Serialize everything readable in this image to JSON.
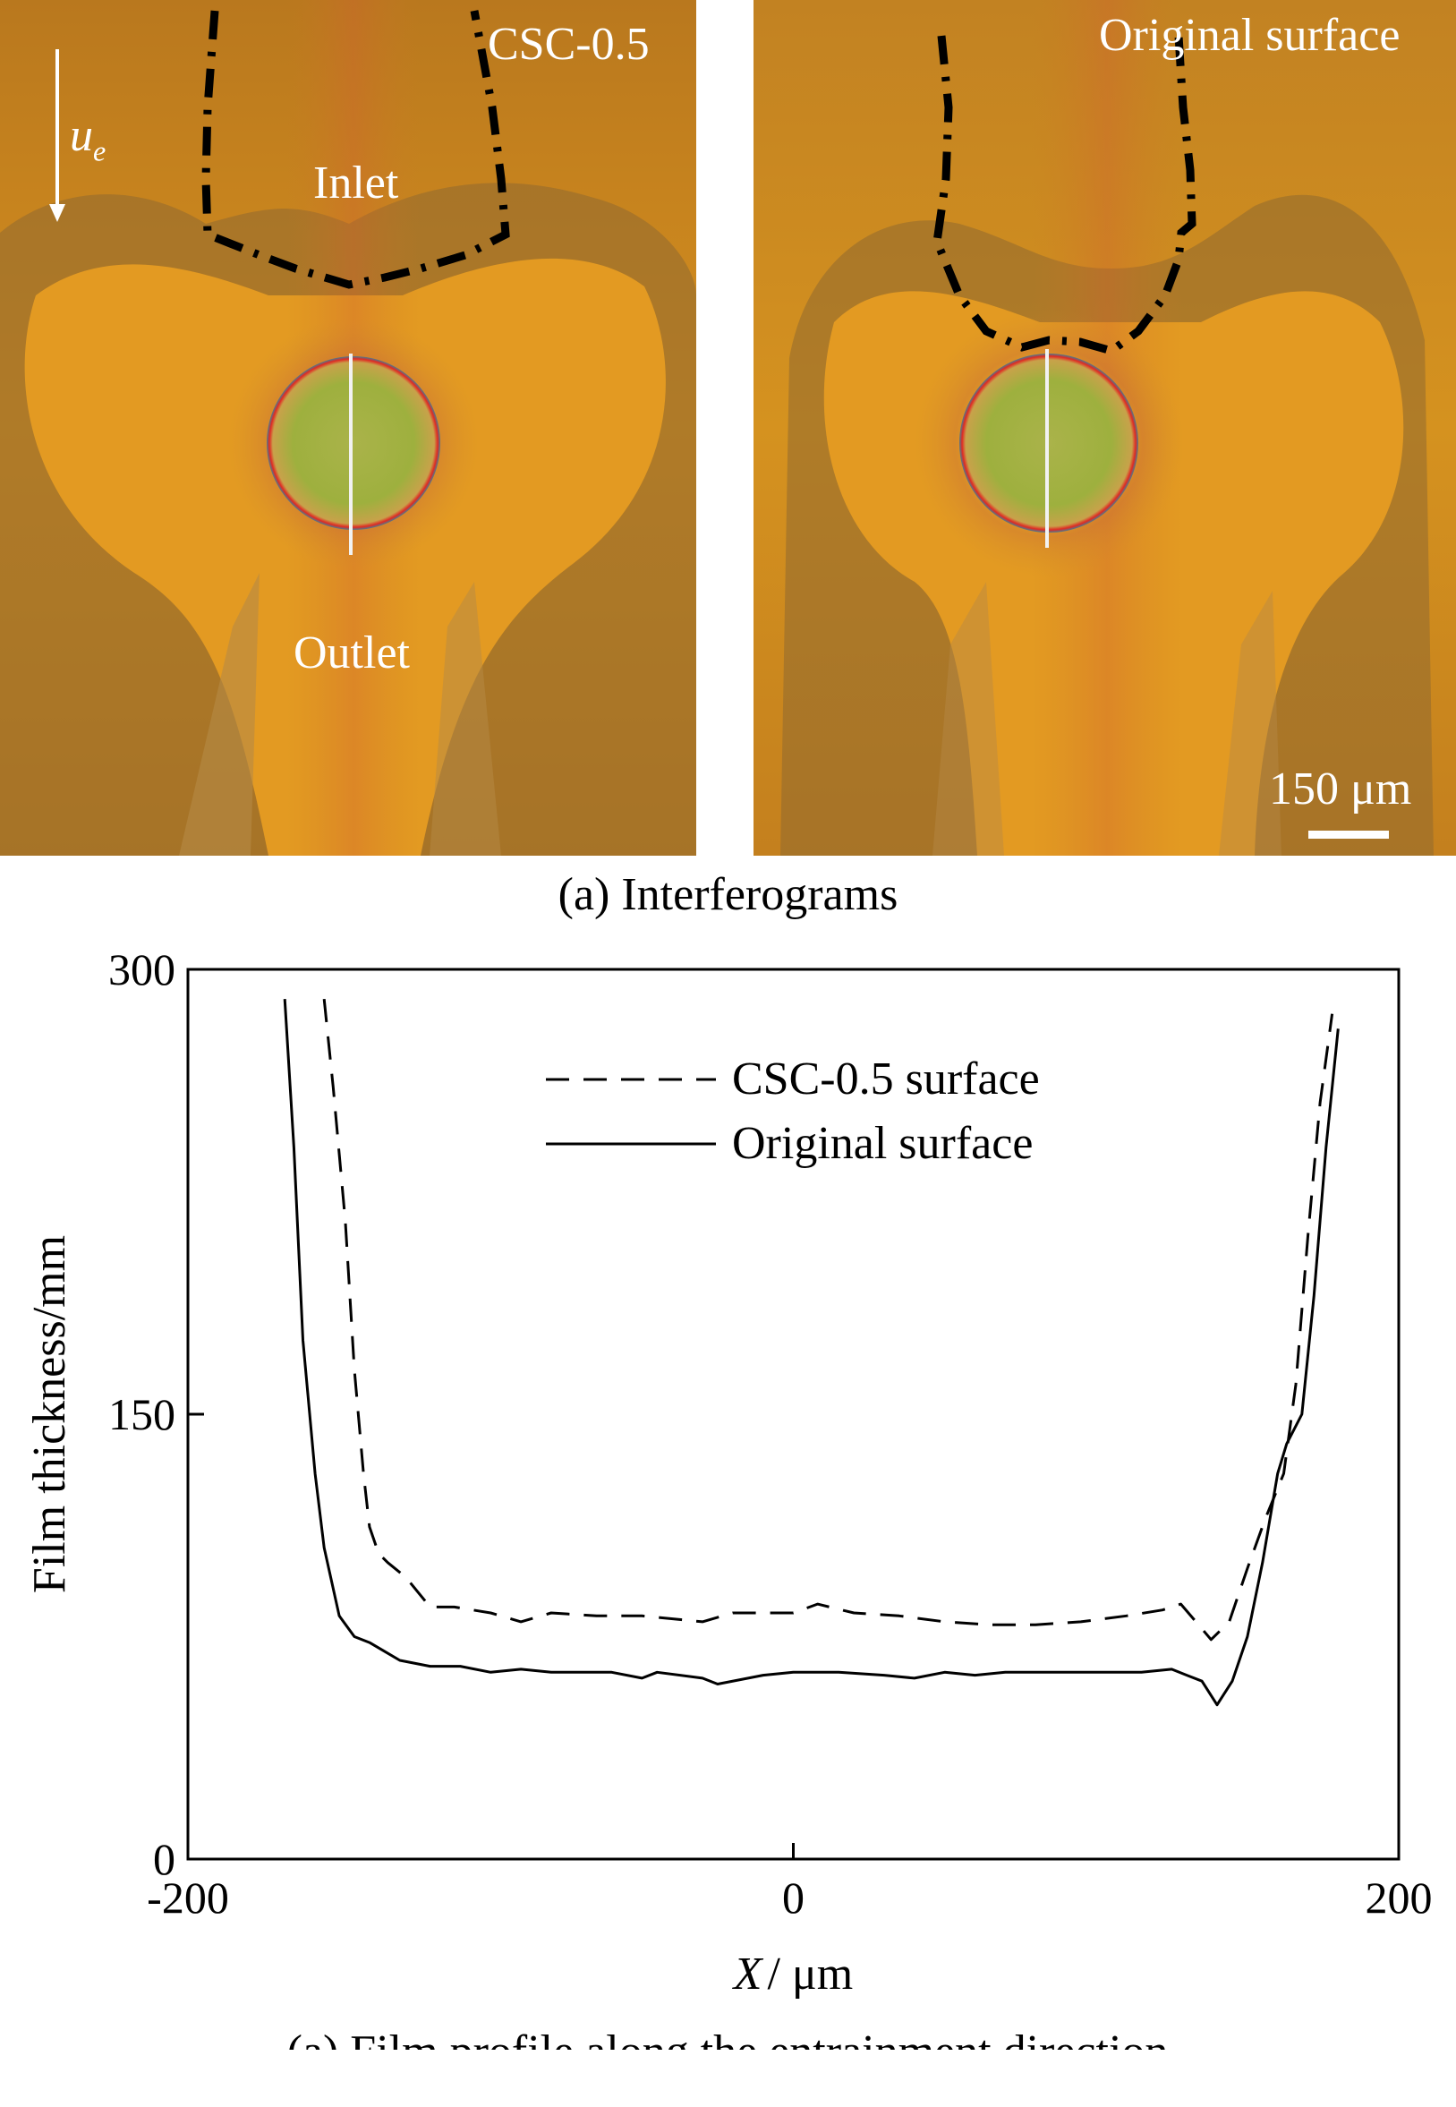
{
  "interferograms": {
    "left": {
      "title": "CSC-0.5",
      "inlet_label": "Inlet",
      "outlet_label": "Outlet",
      "arrow_symbol": "u",
      "arrow_subscript": "e"
    },
    "right": {
      "title": "Original surface",
      "scale_bar_label": "150 μm"
    },
    "caption": "(a) Interferograms"
  },
  "chart_data": {
    "type": "line",
    "xlabel_symbol": "X",
    "xlabel_unit": "/ μm",
    "ylabel": "Film thickness/mm",
    "xlim": [
      -200,
      200
    ],
    "ylim": [
      0,
      300
    ],
    "xticks": [
      "-200",
      "0",
      "200"
    ],
    "yticks": [
      "0",
      "150",
      "300"
    ],
    "legend_position": "top-center",
    "series": [
      {
        "name": "CSC-0.5 surface",
        "style": "dashed",
        "x": [
          -155,
          -152,
          -148,
          -145,
          -142,
          -140,
          -137,
          -134,
          -128,
          -120,
          -112,
          -100,
          -90,
          -80,
          -65,
          -50,
          -30,
          -20,
          -10,
          0,
          8,
          20,
          35,
          50,
          65,
          80,
          95,
          110,
          122,
          128,
          133,
          138,
          144,
          150,
          156,
          162,
          166,
          170,
          174,
          178
        ],
        "y": [
          290,
          260,
          215,
          165,
          130,
          112,
          103,
          100,
          95,
          85,
          85,
          83,
          80,
          83,
          82,
          82,
          80,
          83,
          83,
          83,
          86,
          83,
          82,
          80,
          79,
          79,
          80,
          82,
          84,
          86,
          80,
          74,
          80,
          98,
          115,
          130,
          160,
          210,
          255,
          285
        ]
      },
      {
        "name": "Original surface",
        "style": "solid",
        "x": [
          -168,
          -165,
          -162,
          -158,
          -155,
          -150,
          -145,
          -140,
          -135,
          -130,
          -120,
          -110,
          -100,
          -90,
          -80,
          -60,
          -50,
          -45,
          -30,
          -25,
          -10,
          0,
          15,
          30,
          40,
          50,
          60,
          70,
          80,
          100,
          115,
          125,
          130,
          135,
          140,
          145,
          150,
          155,
          160,
          163,
          168,
          172,
          176,
          180
        ],
        "y": [
          290,
          240,
          175,
          130,
          105,
          82,
          75,
          73,
          70,
          67,
          65,
          65,
          63,
          64,
          63,
          63,
          61,
          63,
          61,
          59,
          62,
          63,
          63,
          62,
          61,
          63,
          62,
          63,
          63,
          63,
          63,
          64,
          62,
          60,
          52,
          60,
          75,
          100,
          130,
          140,
          150,
          190,
          240,
          280
        ]
      }
    ]
  },
  "chart_caption": "(a) Film profile along the entrainment direction"
}
